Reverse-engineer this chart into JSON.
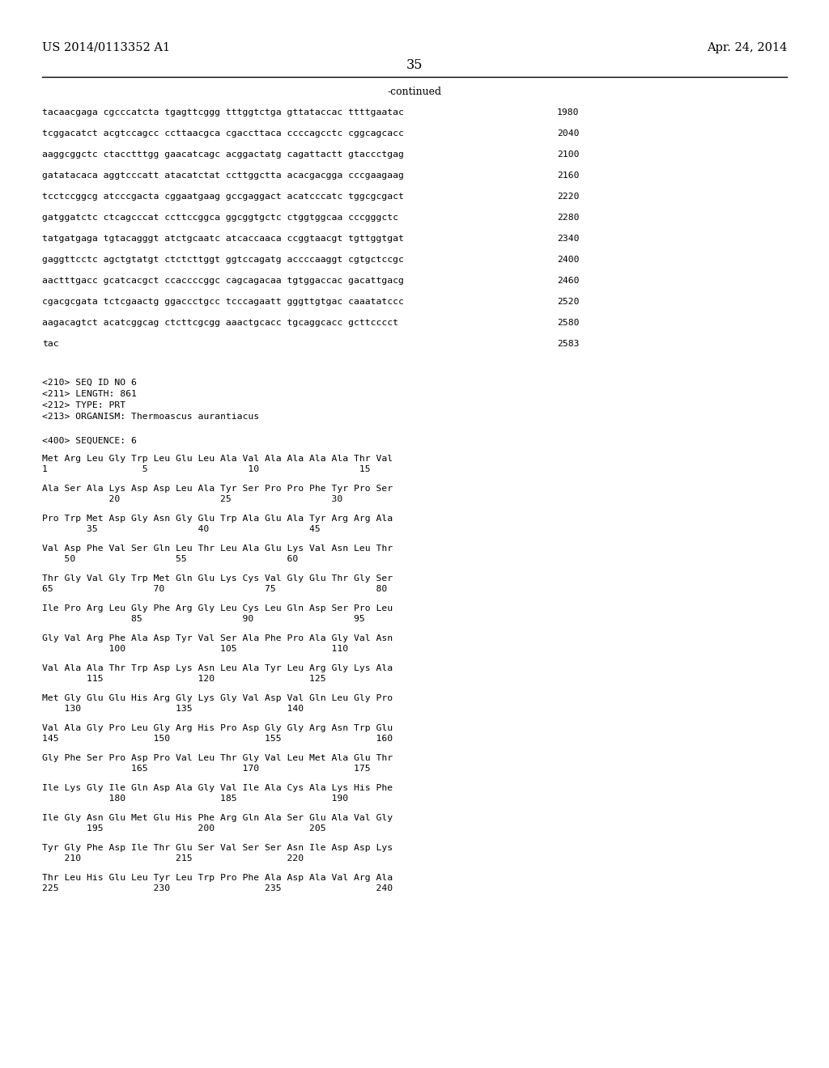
{
  "header_left": "US 2014/0113352 A1",
  "header_right": "Apr. 24, 2014",
  "page_number": "35",
  "continued_label": "-continued",
  "background_color": "#ffffff",
  "text_color": "#000000",
  "sequence_lines": [
    [
      "tacaacgaga cgcccatcta tgagttcggg tttggtctga gttataccac ttttgaatac",
      "1980"
    ],
    [
      "tcggacatct acgtccagcc ccttaacgca cgaccttaca ccccagcctc cggcagcacc",
      "2040"
    ],
    [
      "aaggcggctc ctacctttgg gaacatcagc acggactatg cagattactt gtaccctgag",
      "2100"
    ],
    [
      "gatatacaca aggtcccatt atacatctat ccttggctta acacgacgga cccgaagaag",
      "2160"
    ],
    [
      "tcctccggcg atcccgacta cggaatgaag gccgaggact acatcccatc tggcgcgact",
      "2220"
    ],
    [
      "gatggatctc ctcagcccat ccttccggca ggcggtgctc ctggtggcaa cccgggctc",
      "2280"
    ],
    [
      "tatgatgaga tgtacagggt atctgcaatc atcaccaaca ccggtaacgt tgttggtgat",
      "2340"
    ],
    [
      "gaggttcctc agctgtatgt ctctcttggt ggtccagatg accccaaggt cgtgctccgc",
      "2400"
    ],
    [
      "aactttgacc gcatcacgct ccaccccggc cagcagacaa tgtggaccac gacattgacg",
      "2460"
    ],
    [
      "cgacgcgata tctcgaactg ggaccctgcc tcccagaatt gggttgtgac caaatatccc",
      "2520"
    ],
    [
      "aagacagtct acatcggcag ctcttcgcgg aaactgcacc tgcaggcacc gcttcccct",
      "2580"
    ],
    [
      "tac",
      "2583"
    ]
  ],
  "metadata_lines": [
    "<210> SEQ ID NO 6",
    "<211> LENGTH: 861",
    "<212> TYPE: PRT",
    "<213> ORGANISM: Thermoascus aurantiacus"
  ],
  "sequence400_label": "<400> SEQUENCE: 6",
  "protein_blocks": [
    {
      "aa_line": "Met Arg Leu Gly Trp Leu Glu Leu Ala Val Ala Ala Ala Ala Thr Val",
      "num_line": "1                 5                  10                  15"
    },
    {
      "aa_line": "Ala Ser Ala Lys Asp Asp Leu Ala Tyr Ser Pro Pro Phe Tyr Pro Ser",
      "num_line": "            20                  25                  30"
    },
    {
      "aa_line": "Pro Trp Met Asp Gly Asn Gly Glu Trp Ala Glu Ala Tyr Arg Arg Ala",
      "num_line": "        35                  40                  45"
    },
    {
      "aa_line": "Val Asp Phe Val Ser Gln Leu Thr Leu Ala Glu Lys Val Asn Leu Thr",
      "num_line": "    50                  55                  60"
    },
    {
      "aa_line": "Thr Gly Val Gly Trp Met Gln Glu Lys Cys Val Gly Glu Thr Gly Ser",
      "num_line": "65                  70                  75                  80"
    },
    {
      "aa_line": "Ile Pro Arg Leu Gly Phe Arg Gly Leu Cys Leu Gln Asp Ser Pro Leu",
      "num_line": "                85                  90                  95"
    },
    {
      "aa_line": "Gly Val Arg Phe Ala Asp Tyr Val Ser Ala Phe Pro Ala Gly Val Asn",
      "num_line": "            100                 105                 110"
    },
    {
      "aa_line": "Val Ala Ala Thr Trp Asp Lys Asn Leu Ala Tyr Leu Arg Gly Lys Ala",
      "num_line": "        115                 120                 125"
    },
    {
      "aa_line": "Met Gly Glu Glu His Arg Gly Lys Gly Val Asp Val Gln Leu Gly Pro",
      "num_line": "    130                 135                 140"
    },
    {
      "aa_line": "Val Ala Gly Pro Leu Gly Arg His Pro Asp Gly Gly Arg Asn Trp Glu",
      "num_line": "145                 150                 155                 160"
    },
    {
      "aa_line": "Gly Phe Ser Pro Asp Pro Val Leu Thr Gly Val Leu Met Ala Glu Thr",
      "num_line": "                165                 170                 175"
    },
    {
      "aa_line": "Ile Lys Gly Ile Gln Asp Ala Gly Val Ile Ala Cys Ala Lys His Phe",
      "num_line": "            180                 185                 190"
    },
    {
      "aa_line": "Ile Gly Asn Glu Met Glu His Phe Arg Gln Ala Ser Glu Ala Val Gly",
      "num_line": "        195                 200                 205"
    },
    {
      "aa_line": "Tyr Gly Phe Asp Ile Thr Glu Ser Val Ser Ser Asn Ile Asp Asp Lys",
      "num_line": "    210                 215                 220"
    },
    {
      "aa_line": "Thr Leu His Glu Leu Tyr Leu Trp Pro Phe Ala Asp Ala Val Arg Ala",
      "num_line": "225                 230                 235                 240"
    }
  ]
}
